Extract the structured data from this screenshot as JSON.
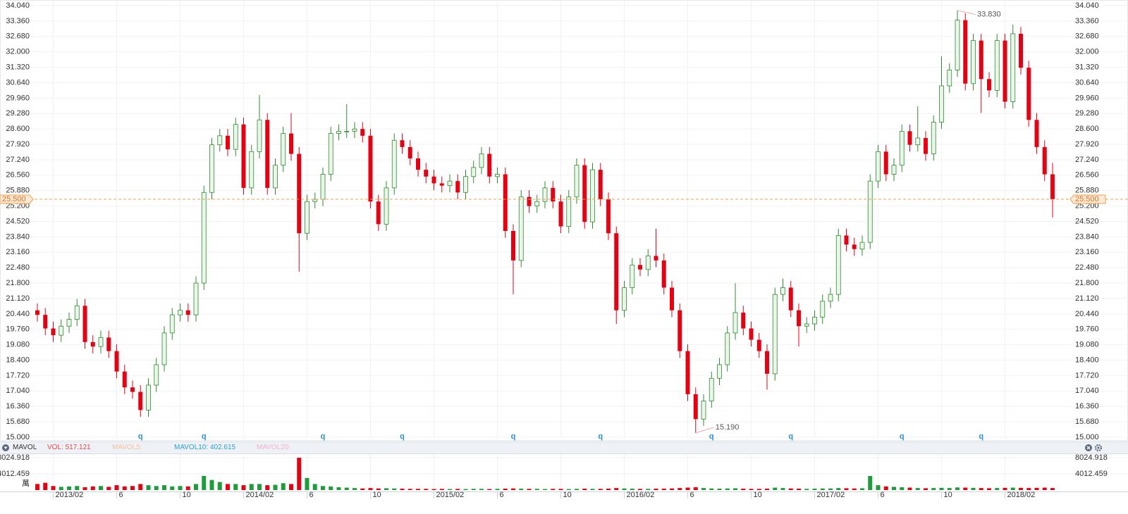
{
  "chart_data": {
    "type": "candlestick",
    "categories": [
      null,
      null,
      "2013/02",
      null,
      null,
      null,
      null,
      null,
      null,
      null,
      "6",
      null,
      null,
      null,
      null,
      null,
      null,
      null,
      "10",
      null,
      null,
      null,
      null,
      null,
      null,
      null,
      "2014/02",
      null,
      null,
      null,
      null,
      null,
      null,
      null,
      "6",
      null,
      null,
      null,
      null,
      null,
      null,
      null,
      "10",
      null,
      null,
      null,
      null,
      null,
      null,
      null,
      "2015/02",
      null,
      null,
      null,
      null,
      null,
      null,
      null,
      "6",
      null,
      null,
      null,
      null,
      null,
      null,
      null,
      "10",
      null,
      null,
      null,
      null,
      null,
      null,
      null,
      "2016/02",
      null,
      null,
      null,
      null,
      null,
      null,
      null,
      "6",
      null,
      null,
      null,
      null,
      null,
      null,
      null,
      "10",
      null,
      null,
      null,
      null,
      null,
      null,
      null,
      "2017/02",
      null,
      null,
      null,
      null,
      null,
      null,
      null,
      "6",
      null,
      null,
      null,
      null,
      null,
      null,
      null,
      "10",
      null,
      null,
      null,
      null,
      null,
      null,
      null,
      "2018/02",
      null,
      null,
      null,
      null,
      null,
      null
    ],
    "open": [
      20.6,
      20.4,
      19.8,
      19.5,
      19.9,
      20.2,
      20.8,
      19.2,
      19.0,
      19.4,
      18.8,
      17.9,
      17.2,
      17.0,
      16.2,
      17.3,
      18.2,
      19.6,
      20.4,
      20.6,
      20.4,
      21.8,
      25.8,
      27.9,
      28.3,
      27.7,
      28.8,
      26.0,
      27.6,
      29.0,
      26.0,
      27.0,
      28.4,
      27.5,
      24.0,
      25.4,
      25.5,
      26.6,
      28.4,
      28.5,
      28.5,
      28.6,
      28.3,
      25.4,
      24.4,
      26.0,
      28.1,
      27.8,
      27.3,
      26.8,
      26.5,
      26.2,
      26.1,
      26.3,
      25.8,
      26.5,
      26.9,
      27.5,
      26.5,
      26.6,
      24.1,
      22.8,
      25.6,
      25.2,
      25.4,
      26.0,
      25.4,
      24.3,
      25.6,
      27.0,
      24.5,
      26.8,
      25.5,
      24.0,
      20.6,
      21.6,
      22.6,
      22.4,
      23.0,
      22.8,
      21.6,
      20.6,
      18.8,
      16.9,
      15.8,
      16.6,
      17.6,
      18.2,
      19.6,
      20.5,
      19.8,
      19.3,
      18.8,
      17.8,
      21.3,
      21.6,
      20.6,
      19.9,
      20.0,
      20.3,
      21.0,
      21.3,
      23.9,
      23.5,
      23.3,
      23.6,
      26.3,
      27.6,
      26.6,
      27.0,
      28.5,
      27.9,
      28.2,
      27.5,
      28.9,
      30.5,
      31.2,
      33.4,
      30.6,
      32.5,
      30.8,
      30.3,
      32.5,
      29.8,
      32.8,
      31.3,
      29.0,
      27.8,
      26.6
    ],
    "high": [
      20.9,
      20.7,
      20.1,
      20.2,
      20.5,
      21.1,
      21.1,
      19.5,
      19.7,
      19.7,
      19.1,
      18.2,
      17.5,
      17.3,
      17.6,
      18.5,
      19.9,
      20.7,
      20.9,
      20.9,
      22.1,
      26.1,
      28.2,
      28.6,
      28.6,
      29.1,
      29.1,
      27.9,
      30.1,
      29.3,
      27.3,
      28.7,
      29.3,
      27.8,
      25.7,
      25.8,
      26.9,
      28.7,
      28.8,
      29.7,
      28.9,
      28.9,
      28.6,
      25.7,
      26.3,
      28.4,
      28.4,
      28.1,
      27.6,
      27.1,
      26.8,
      26.5,
      26.6,
      26.6,
      26.8,
      27.2,
      27.8,
      27.8,
      26.9,
      26.9,
      24.4,
      25.9,
      25.9,
      25.7,
      26.3,
      26.3,
      25.7,
      25.9,
      27.3,
      27.3,
      27.1,
      27.1,
      25.8,
      24.3,
      21.9,
      22.9,
      22.9,
      23.3,
      24.2,
      23.1,
      21.9,
      20.9,
      19.1,
      17.2,
      16.9,
      17.9,
      18.5,
      19.9,
      21.8,
      20.8,
      20.1,
      19.6,
      19.1,
      21.6,
      22.0,
      21.9,
      20.9,
      20.3,
      20.6,
      21.3,
      21.6,
      24.2,
      24.2,
      23.8,
      23.9,
      26.6,
      27.9,
      27.9,
      27.3,
      28.8,
      28.8,
      29.6,
      28.5,
      29.2,
      31.8,
      31.5,
      33.83,
      33.7,
      32.8,
      32.8,
      31.1,
      32.8,
      32.8,
      33.2,
      33.1,
      31.6,
      29.3,
      28.1,
      27.1
    ],
    "low": [
      20.1,
      19.5,
      19.2,
      19.2,
      19.6,
      19.9,
      18.9,
      18.7,
      18.7,
      18.5,
      17.6,
      16.9,
      16.7,
      15.9,
      15.9,
      17.0,
      17.9,
      19.3,
      20.1,
      20.1,
      20.1,
      21.5,
      25.5,
      27.6,
      27.4,
      27.4,
      25.7,
      25.7,
      27.3,
      25.7,
      25.7,
      26.7,
      27.2,
      22.3,
      23.7,
      25.1,
      25.2,
      26.3,
      28.1,
      28.2,
      28.2,
      28.0,
      25.1,
      24.1,
      24.1,
      25.7,
      27.5,
      27.0,
      26.5,
      26.2,
      25.9,
      25.8,
      25.8,
      25.5,
      25.5,
      26.2,
      26.6,
      26.2,
      26.2,
      23.8,
      21.3,
      22.5,
      24.9,
      24.9,
      25.1,
      25.1,
      24.0,
      24.0,
      25.3,
      24.2,
      24.2,
      25.2,
      23.7,
      20.0,
      20.3,
      21.3,
      22.1,
      22.1,
      22.5,
      21.3,
      20.3,
      18.5,
      16.6,
      15.19,
      15.5,
      16.3,
      17.3,
      17.9,
      19.3,
      19.5,
      19.0,
      18.5,
      17.1,
      17.5,
      21.0,
      20.3,
      19.0,
      19.6,
      19.7,
      20.0,
      20.7,
      21.0,
      23.2,
      23.0,
      23.0,
      23.3,
      26.0,
      26.3,
      26.3,
      26.7,
      27.6,
      27.6,
      27.2,
      27.2,
      28.6,
      30.2,
      30.9,
      30.3,
      30.3,
      29.3,
      30.0,
      30.0,
      29.5,
      29.5,
      31.0,
      28.7,
      27.5,
      26.3,
      24.7
    ],
    "close": [
      20.4,
      19.8,
      19.5,
      19.9,
      20.2,
      20.8,
      19.2,
      19.0,
      19.4,
      18.8,
      17.9,
      17.2,
      17.0,
      16.2,
      17.3,
      18.2,
      19.6,
      20.4,
      20.6,
      20.4,
      21.8,
      25.8,
      27.9,
      28.3,
      27.7,
      28.8,
      26.0,
      27.6,
      29.0,
      26.0,
      27.0,
      28.4,
      27.5,
      24.0,
      25.4,
      25.5,
      26.6,
      28.4,
      28.5,
      28.5,
      28.6,
      28.3,
      25.4,
      24.4,
      26.0,
      28.1,
      27.8,
      27.3,
      26.8,
      26.5,
      26.2,
      26.1,
      26.3,
      25.8,
      26.5,
      26.9,
      27.5,
      26.5,
      26.6,
      24.1,
      22.8,
      25.6,
      25.2,
      25.4,
      26.0,
      25.4,
      24.3,
      25.6,
      27.0,
      24.5,
      26.8,
      25.5,
      24.0,
      20.6,
      21.6,
      22.6,
      22.4,
      23.0,
      22.8,
      21.6,
      20.6,
      18.8,
      16.9,
      15.8,
      16.6,
      17.6,
      18.2,
      19.6,
      20.5,
      19.8,
      19.3,
      18.8,
      17.8,
      21.3,
      21.6,
      20.6,
      19.9,
      20.0,
      20.3,
      21.0,
      21.3,
      23.9,
      23.5,
      23.3,
      23.6,
      26.3,
      27.6,
      26.6,
      27.0,
      28.5,
      27.9,
      28.2,
      27.5,
      28.9,
      30.5,
      31.2,
      33.4,
      30.6,
      32.5,
      30.8,
      30.3,
      32.5,
      29.8,
      32.8,
      31.3,
      29.0,
      27.8,
      26.6,
      25.5
    ],
    "volume": [
      1500,
      1800,
      1000,
      800,
      900,
      1000,
      700,
      900,
      1000,
      800,
      1200,
      900,
      1000,
      1500,
      1200,
      1000,
      1200,
      900,
      1000,
      900,
      1500,
      3500,
      2500,
      2000,
      1500,
      1500,
      1200,
      1500,
      1500,
      1200,
      1300,
      1700,
      1500,
      8000,
      3000,
      1500,
      1000,
      900,
      700,
      600,
      500,
      400,
      500,
      400,
      450,
      400,
      350,
      300,
      300,
      300,
      250,
      300,
      250,
      300,
      250,
      300,
      300,
      250,
      300,
      350,
      400,
      350,
      300,
      300,
      250,
      300,
      300,
      250,
      300,
      350,
      300,
      300,
      350,
      500,
      400,
      350,
      300,
      300,
      350,
      350,
      400,
      500,
      600,
      700,
      500,
      400,
      350,
      400,
      450,
      350,
      300,
      300,
      350,
      600,
      500,
      400,
      350,
      300,
      350,
      400,
      400,
      500,
      450,
      400,
      450,
      3500,
      1200,
      900,
      800,
      700,
      600,
      500,
      450,
      500,
      550,
      500,
      650,
      600,
      550,
      500,
      450,
      500,
      550,
      600,
      550,
      500,
      550,
      600,
      500
    ],
    "up_color": "#2e8b2e",
    "down_color": "#e60012",
    "ylim": [
      15,
      34.04
    ],
    "yticks": [
      {
        "value": 15,
        "label": "15.000"
      },
      {
        "value": 15.68,
        "label": "15.680"
      },
      {
        "value": 16.36,
        "label": "16.360"
      },
      {
        "value": 17.04,
        "label": "17.040"
      },
      {
        "value": 17.72,
        "label": "17.720"
      },
      {
        "value": 18.4,
        "label": "18.400"
      },
      {
        "value": 19.08,
        "label": "19.080"
      },
      {
        "value": 19.76,
        "label": "19.760"
      },
      {
        "value": 20.44,
        "label": "20.440"
      },
      {
        "value": 21.12,
        "label": "21.120"
      },
      {
        "value": 21.8,
        "label": "21.800"
      },
      {
        "value": 22.48,
        "label": "22.480"
      },
      {
        "value": 23.16,
        "label": "23.160"
      },
      {
        "value": 23.84,
        "label": "23.840"
      },
      {
        "value": 24.52,
        "label": "24.520"
      },
      {
        "value": 25.2,
        "label": "25.200"
      },
      {
        "value": 25.88,
        "label": "25.880"
      },
      {
        "value": 26.56,
        "label": "26.560"
      },
      {
        "value": 27.24,
        "label": "27.240"
      },
      {
        "value": 27.92,
        "label": "27.920"
      },
      {
        "value": 28.6,
        "label": "28.600"
      },
      {
        "value": 29.28,
        "label": "29.280"
      },
      {
        "value": 29.96,
        "label": "29.960"
      },
      {
        "value": 30.64,
        "label": "30.640"
      },
      {
        "value": 31.32,
        "label": "31.320"
      },
      {
        "value": 32,
        "label": "32.000"
      },
      {
        "value": 32.68,
        "label": "32.680"
      },
      {
        "value": 33.36,
        "label": "33.360"
      },
      {
        "value": 34.04,
        "label": "34.040"
      }
    ],
    "grid": true,
    "last_price": {
      "value": 25.5,
      "label": "25.500"
    },
    "annotations": [
      {
        "index": 116,
        "value": 33.83,
        "label": "33.830"
      },
      {
        "index": 83,
        "value": 15.19,
        "label": "15.190"
      }
    ],
    "events": [
      {
        "index": 13,
        "label": "q"
      },
      {
        "index": 21,
        "label": "q"
      },
      {
        "index": 36,
        "label": "q"
      },
      {
        "index": 46,
        "label": "q"
      },
      {
        "index": 60,
        "label": "q"
      },
      {
        "index": 71,
        "label": "q"
      },
      {
        "index": 85,
        "label": "q"
      },
      {
        "index": 95,
        "label": "q"
      },
      {
        "index": 109,
        "label": "q"
      },
      {
        "index": 119,
        "label": "q"
      }
    ],
    "vol_ylim": [
      0,
      8024.918
    ],
    "vol_yticks": [
      4012.459,
      8024.918
    ],
    "vol_unit": "萬",
    "indicator": {
      "name": "MAVOL",
      "vol": "VOL: 517.121",
      "ma5": "MAVOL5:",
      "ma10": "MAVOL10: 402.615",
      "ma20": "MAVOL20:"
    }
  }
}
